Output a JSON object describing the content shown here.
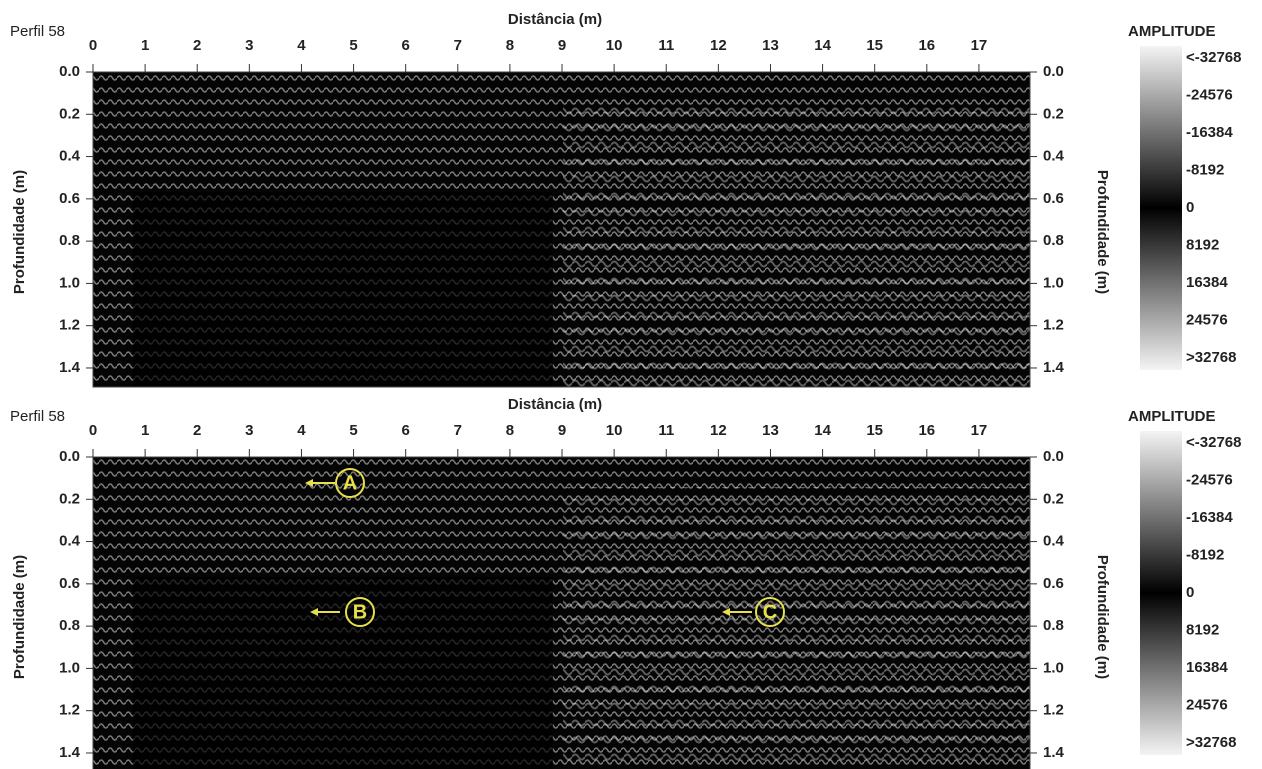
{
  "chart_data": [
    {
      "type": "radargram",
      "title": "Perfil 58",
      "x_label": "Distância (m)",
      "y_label": "Profundidade (m)",
      "y2_label": "Profundidade (m)",
      "xlim": [
        0,
        17.98
      ],
      "xticks": [
        0,
        1,
        2,
        3,
        4,
        5,
        6,
        7,
        8,
        9,
        10,
        11,
        12,
        13,
        14,
        15,
        16,
        17
      ],
      "ylim": [
        0,
        1.49
      ],
      "yticks": [
        {
          "value": 0,
          "label": "0.0"
        },
        {
          "value": 0.2,
          "label": "0.2"
        },
        {
          "value": 0.4,
          "label": "0.4"
        },
        {
          "value": 0.6,
          "label": "0.6"
        },
        {
          "value": 0.8,
          "label": "0.8"
        },
        {
          "value": 1.0,
          "label": "1.0"
        },
        {
          "value": 1.2,
          "label": "1.2"
        },
        {
          "value": 1.4,
          "label": "1.4"
        }
      ],
      "colorbar_title": "AMPLITUDE",
      "colorbar_lim": [
        -32768,
        32768
      ],
      "colorbar_ticks": [
        {
          "value": -32768,
          "label": "<-32768"
        },
        -24576,
        -16384,
        -8192,
        0,
        8192,
        16384,
        24576,
        {
          "value": 32768,
          "label": ">32768"
        }
      ],
      "annotations": []
    },
    {
      "type": "radargram",
      "title": "Perfil 58",
      "x_label": "Distância (m)",
      "y_label": "Profundidade (m)",
      "y2_label": "Profundidade (m)",
      "xlim": [
        0,
        17.98
      ],
      "xticks": [
        0,
        1,
        2,
        3,
        4,
        5,
        6,
        7,
        8,
        9,
        10,
        11,
        12,
        13,
        14,
        15,
        16,
        17
      ],
      "ylim": [
        0,
        1.49
      ],
      "yticks": [
        {
          "value": 0,
          "label": "0.0"
        },
        {
          "value": 0.2,
          "label": "0.2"
        },
        {
          "value": 0.4,
          "label": "0.4"
        },
        {
          "value": 0.6,
          "label": "0.6"
        },
        {
          "value": 0.8,
          "label": "0.8"
        },
        {
          "value": 1.0,
          "label": "1.0"
        },
        {
          "value": 1.2,
          "label": "1.2"
        },
        {
          "value": 1.4,
          "label": "1.4"
        }
      ],
      "colorbar_title": "AMPLITUDE",
      "colorbar_lim": [
        -32768,
        32768
      ],
      "colorbar_ticks": [
        {
          "value": -32768,
          "label": "<-32768"
        },
        -24576,
        -16384,
        -8192,
        0,
        8192,
        16384,
        24576,
        {
          "value": 32768,
          "label": ">32768"
        }
      ],
      "annotations": [
        "A",
        "B",
        "C"
      ]
    }
  ]
}
